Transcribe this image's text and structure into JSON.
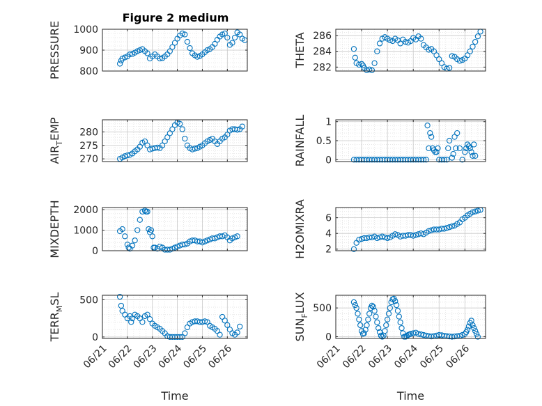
{
  "figure": {
    "title": "Figure 2 medium",
    "marker_color": "#0072BD"
  },
  "chart_data": [
    {
      "type": "scatter",
      "ylabel": "PRESSURE",
      "xlabel": "",
      "ylim": [
        800,
        1000
      ],
      "yticks": [
        800,
        900,
        1000
      ],
      "grid": true,
      "x": [
        0.7,
        0.75,
        0.8,
        0.9,
        1.0,
        1.1,
        1.2,
        1.3,
        1.4,
        1.5,
        1.6,
        1.7,
        1.8,
        1.9,
        2.0,
        2.1,
        2.2,
        2.3,
        2.4,
        2.5,
        2.6,
        2.7,
        2.8,
        2.9,
        3.0,
        3.1,
        3.2,
        3.3,
        3.4,
        3.5,
        3.6,
        3.7,
        3.8,
        3.9,
        4.0,
        4.1,
        4.2,
        4.3,
        4.4,
        4.5,
        4.6,
        4.7,
        4.8,
        4.9,
        5.0,
        5.1,
        5.2,
        5.3,
        5.4,
        5.5,
        5.6,
        5.7
      ],
      "y": [
        835,
        850,
        860,
        865,
        870,
        880,
        882,
        888,
        895,
        900,
        905,
        895,
        885,
        860,
        870,
        880,
        870,
        860,
        862,
        870,
        880,
        895,
        915,
        935,
        955,
        970,
        980,
        975,
        940,
        910,
        885,
        875,
        868,
        872,
        880,
        890,
        900,
        905,
        915,
        930,
        950,
        965,
        975,
        980,
        960,
        925,
        935,
        960,
        985,
        975,
        955,
        948
      ]
    },
    {
      "type": "scatter",
      "ylabel": "THETA",
      "xlabel": "",
      "ylim": [
        281.5,
        286.8
      ],
      "yticks": [
        282,
        284,
        286
      ],
      "grid": true,
      "x": [
        0.7,
        0.75,
        0.8,
        0.9,
        1.0,
        1.05,
        1.1,
        1.2,
        1.3,
        1.4,
        1.5,
        1.6,
        1.7,
        1.8,
        1.9,
        2.0,
        2.1,
        2.2,
        2.3,
        2.4,
        2.5,
        2.6,
        2.7,
        2.8,
        2.9,
        3.0,
        3.1,
        3.2,
        3.3,
        3.4,
        3.5,
        3.6,
        3.7,
        3.8,
        3.9,
        4.0,
        4.1,
        4.2,
        4.3,
        4.4,
        4.5,
        4.6,
        4.7,
        4.8,
        4.9,
        5.0,
        5.1,
        5.2,
        5.3,
        5.4,
        5.5,
        5.6
      ],
      "y": [
        284.3,
        283.2,
        282.5,
        282.3,
        282.4,
        282.2,
        281.9,
        281.6,
        281.7,
        281.6,
        282.5,
        284.0,
        285.0,
        285.6,
        285.8,
        285.6,
        285.4,
        285.3,
        285.6,
        285.4,
        285.0,
        285.5,
        285.2,
        285.1,
        285.3,
        285.7,
        285.5,
        285.9,
        285.6,
        284.8,
        284.5,
        284.2,
        284.3,
        284.0,
        283.5,
        283.0,
        282.5,
        282.0,
        281.8,
        281.9,
        283.4,
        283.3,
        283.0,
        282.8,
        282.9,
        283.1,
        283.5,
        284.0,
        284.6,
        285.2,
        285.9,
        286.5
      ]
    },
    {
      "type": "scatter",
      "ylabel": "AIR_TEMP",
      "xlabel": "",
      "ylim": [
        269,
        284.5
      ],
      "yticks": [
        270,
        275,
        280
      ],
      "grid": true,
      "x": [
        0.7,
        0.8,
        0.9,
        1.0,
        1.1,
        1.2,
        1.3,
        1.4,
        1.5,
        1.6,
        1.7,
        1.8,
        1.9,
        2.0,
        2.1,
        2.2,
        2.3,
        2.4,
        2.5,
        2.6,
        2.7,
        2.8,
        2.9,
        3.0,
        3.1,
        3.2,
        3.3,
        3.4,
        3.5,
        3.6,
        3.7,
        3.8,
        3.9,
        4.0,
        4.1,
        4.2,
        4.3,
        4.4,
        4.5,
        4.6,
        4.7,
        4.8,
        4.9,
        5.0,
        5.1,
        5.2,
        5.3,
        5.4,
        5.5,
        5.6
      ],
      "y": [
        270.0,
        270.5,
        271.0,
        271.3,
        271.5,
        272.0,
        272.8,
        273.5,
        274.5,
        276.0,
        276.5,
        275.0,
        273.5,
        273.8,
        274.0,
        274.2,
        274.0,
        275.0,
        276.5,
        278.0,
        279.5,
        281.0,
        282.5,
        283.5,
        283.0,
        281.0,
        277.5,
        275.0,
        274.0,
        273.5,
        273.8,
        274.0,
        274.5,
        275.0,
        275.8,
        276.5,
        277.0,
        277.5,
        276.5,
        275.5,
        276.5,
        277.5,
        278.0,
        279.0,
        280.5,
        281.0,
        281.0,
        280.8,
        281.0,
        282.0
      ]
    },
    {
      "type": "scatter",
      "ylabel": "RAINFALL",
      "xlabel": "",
      "ylim": [
        -0.05,
        1.05
      ],
      "yticks": [
        0,
        0.5,
        1
      ],
      "grid": true,
      "x": [
        0.7,
        0.8,
        0.9,
        1.0,
        1.1,
        1.2,
        1.3,
        1.4,
        1.5,
        1.6,
        1.7,
        1.8,
        1.9,
        2.0,
        2.1,
        2.2,
        2.3,
        2.4,
        2.5,
        2.6,
        2.7,
        2.8,
        2.9,
        3.0,
        3.1,
        3.2,
        3.3,
        3.4,
        3.5,
        3.55,
        3.6,
        3.65,
        3.7,
        3.75,
        3.8,
        3.85,
        3.9,
        3.95,
        4.0,
        4.1,
        4.2,
        4.3,
        4.35,
        4.4,
        4.5,
        4.55,
        4.6,
        4.65,
        4.7,
        4.8,
        4.9,
        5.0,
        5.05,
        5.1,
        5.15,
        5.2,
        5.25,
        5.3,
        5.35,
        5.4
      ],
      "y": [
        0,
        0,
        0,
        0,
        0,
        0,
        0,
        0,
        0,
        0,
        0,
        0,
        0,
        0,
        0,
        0,
        0,
        0,
        0,
        0,
        0,
        0,
        0,
        0,
        0,
        0,
        0,
        0,
        0,
        0.9,
        0.3,
        0.7,
        0.6,
        0.3,
        0.25,
        0.2,
        0.2,
        0.3,
        0,
        0,
        0,
        0,
        0.3,
        0.5,
        0.05,
        0.15,
        0.6,
        0.3,
        0.7,
        0.3,
        0,
        0.2,
        0.3,
        0.4,
        0.35,
        0.3,
        0.2,
        0.1,
        0.4,
        0.1
      ]
    },
    {
      "type": "scatter",
      "ylabel": "MIXDEPTH",
      "xlabel": "",
      "ylim": [
        0,
        2100
      ],
      "yticks": [
        0,
        1000,
        2000
      ],
      "grid": true,
      "x": [
        0.7,
        0.8,
        0.9,
        1.0,
        1.05,
        1.1,
        1.2,
        1.3,
        1.4,
        1.5,
        1.6,
        1.7,
        1.75,
        1.8,
        1.85,
        1.9,
        1.95,
        2.0,
        2.05,
        2.1,
        2.2,
        2.3,
        2.4,
        2.5,
        2.6,
        2.7,
        2.8,
        2.9,
        3.0,
        3.1,
        3.2,
        3.3,
        3.4,
        3.5,
        3.6,
        3.7,
        3.8,
        3.9,
        4.0,
        4.1,
        4.2,
        4.3,
        4.4,
        4.5,
        4.6,
        4.7,
        4.8,
        4.9,
        5.0,
        5.1,
        5.2,
        5.3,
        5.4
      ],
      "y": [
        950,
        1050,
        700,
        300,
        150,
        100,
        250,
        500,
        1000,
        1500,
        1900,
        1950,
        1900,
        1900,
        1050,
        900,
        1000,
        700,
        150,
        150,
        100,
        200,
        150,
        50,
        50,
        50,
        100,
        150,
        200,
        250,
        300,
        300,
        350,
        450,
        500,
        500,
        450,
        450,
        400,
        450,
        500,
        550,
        600,
        600,
        650,
        700,
        700,
        750,
        650,
        500,
        600,
        650,
        700
      ]
    },
    {
      "type": "scatter",
      "ylabel": "H2OMIXRA",
      "xlabel": "",
      "ylim": [
        1.8,
        7.3
      ],
      "yticks": [
        2,
        4,
        6
      ],
      "grid": true,
      "x": [
        0.7,
        0.8,
        0.9,
        1.0,
        1.1,
        1.2,
        1.3,
        1.4,
        1.5,
        1.6,
        1.7,
        1.8,
        1.9,
        2.0,
        2.1,
        2.2,
        2.3,
        2.4,
        2.5,
        2.6,
        2.7,
        2.8,
        2.9,
        3.0,
        3.1,
        3.2,
        3.3,
        3.4,
        3.5,
        3.6,
        3.7,
        3.8,
        3.9,
        4.0,
        4.1,
        4.2,
        4.3,
        4.4,
        4.5,
        4.6,
        4.7,
        4.8,
        4.9,
        5.0,
        5.1,
        5.2,
        5.3,
        5.4,
        5.5,
        5.6
      ],
      "y": [
        2.0,
        2.8,
        3.2,
        3.3,
        3.4,
        3.4,
        3.5,
        3.5,
        3.6,
        3.4,
        3.5,
        3.6,
        3.5,
        3.4,
        3.5,
        3.7,
        3.9,
        3.8,
        3.6,
        3.7,
        3.7,
        3.8,
        3.8,
        3.7,
        3.8,
        3.9,
        4.0,
        3.9,
        4.1,
        4.3,
        4.4,
        4.5,
        4.5,
        4.5,
        4.6,
        4.6,
        4.7,
        4.8,
        4.9,
        5.0,
        5.2,
        5.4,
        5.8,
        6.0,
        6.3,
        6.5,
        6.7,
        6.8,
        6.9,
        7.0
      ]
    },
    {
      "type": "scatter",
      "ylabel": "TERR_MSL",
      "xlabel": "Time",
      "ylim": [
        -20,
        560
      ],
      "yticks": [
        0,
        500
      ],
      "xticks": [
        "06/21",
        "06/22",
        "06/23",
        "06/24",
        "06/25",
        "06/26"
      ],
      "grid": true,
      "x": [
        0.7,
        0.75,
        0.8,
        0.9,
        1.0,
        1.1,
        1.15,
        1.2,
        1.3,
        1.4,
        1.5,
        1.6,
        1.7,
        1.8,
        1.9,
        2.0,
        2.1,
        2.2,
        2.3,
        2.4,
        2.5,
        2.6,
        2.7,
        2.8,
        2.9,
        3.0,
        3.1,
        3.2,
        3.3,
        3.4,
        3.5,
        3.6,
        3.7,
        3.8,
        3.9,
        4.0,
        4.1,
        4.2,
        4.3,
        4.4,
        4.5,
        4.6,
        4.7,
        4.8,
        4.9,
        5.0,
        5.1,
        5.2,
        5.3,
        5.4,
        5.5
      ],
      "y": [
        540,
        420,
        350,
        300,
        250,
        280,
        200,
        250,
        300,
        280,
        250,
        200,
        280,
        300,
        240,
        180,
        150,
        130,
        110,
        80,
        50,
        10,
        0,
        0,
        0,
        0,
        0,
        0,
        50,
        130,
        180,
        200,
        210,
        210,
        200,
        200,
        210,
        200,
        150,
        130,
        110,
        80,
        30,
        270,
        220,
        160,
        100,
        50,
        30,
        60,
        140
      ]
    },
    {
      "type": "scatter",
      "ylabel": "SUN_FLUX",
      "xlabel": "Time",
      "ylim": [
        -30,
        720
      ],
      "yticks": [
        0,
        500
      ],
      "xticks": [
        "06/21",
        "06/22",
        "06/23",
        "06/24",
        "06/25",
        "06/26"
      ],
      "grid": true,
      "x": [
        0.7,
        0.75,
        0.8,
        0.85,
        0.9,
        0.95,
        1.0,
        1.05,
        1.1,
        1.15,
        1.2,
        1.25,
        1.3,
        1.35,
        1.4,
        1.45,
        1.5,
        1.55,
        1.6,
        1.65,
        1.7,
        1.75,
        1.8,
        1.85,
        1.9,
        1.95,
        2.0,
        2.05,
        2.1,
        2.15,
        2.2,
        2.25,
        2.3,
        2.35,
        2.4,
        2.45,
        2.5,
        2.55,
        2.6,
        2.65,
        2.7,
        2.75,
        2.8,
        2.85,
        2.9,
        3.0,
        3.1,
        3.2,
        3.3,
        3.4,
        3.5,
        3.6,
        3.7,
        3.8,
        3.9,
        4.0,
        4.1,
        4.2,
        4.3,
        4.4,
        4.5,
        4.6,
        4.7,
        4.8,
        4.9,
        5.0,
        5.05,
        5.1,
        5.15,
        5.2,
        5.25,
        5.3,
        5.35,
        5.4,
        5.45,
        5.5
      ],
      "y": [
        600,
        550,
        500,
        400,
        300,
        200,
        100,
        50,
        60,
        120,
        200,
        300,
        400,
        500,
        540,
        520,
        450,
        350,
        250,
        150,
        80,
        20,
        0,
        20,
        100,
        200,
        300,
        400,
        500,
        600,
        650,
        660,
        620,
        550,
        450,
        350,
        250,
        150,
        60,
        0,
        0,
        10,
        30,
        40,
        50,
        60,
        70,
        50,
        40,
        30,
        20,
        10,
        5,
        10,
        20,
        30,
        25,
        15,
        10,
        5,
        0,
        5,
        10,
        15,
        30,
        50,
        80,
        120,
        180,
        240,
        280,
        200,
        150,
        100,
        50,
        0
      ]
    }
  ]
}
